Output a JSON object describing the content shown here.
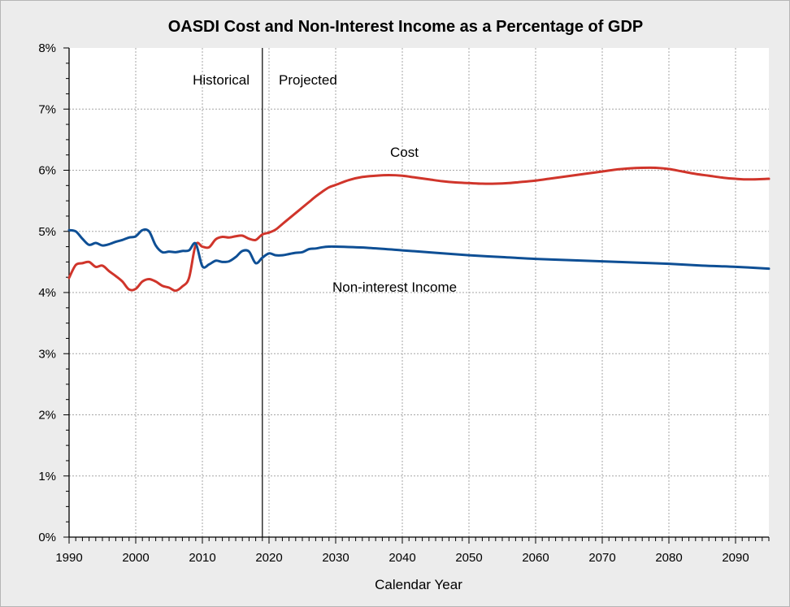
{
  "chart_data": {
    "type": "line",
    "title": "OASDI Cost and Non-Interest Income as a Percentage of GDP",
    "xlabel": "Calendar Year",
    "ylabel": "",
    "xlim": [
      1990,
      2095
    ],
    "ylim": [
      0,
      8
    ],
    "x_ticks": [
      1990,
      2000,
      2010,
      2020,
      2030,
      2040,
      2050,
      2060,
      2070,
      2080,
      2090
    ],
    "y_ticks": [
      "0%",
      "1%",
      "2%",
      "3%",
      "4%",
      "5%",
      "6%",
      "7%",
      "8%"
    ],
    "grid": true,
    "divider_year": 2019,
    "annotations": {
      "historical": "Historical",
      "projected": "Projected",
      "cost": "Cost",
      "income": "Non-interest Income"
    },
    "colors": {
      "cost": "#d0352b",
      "income": "#0e4f95",
      "background": "#ffffff",
      "frame": "#ececec"
    },
    "series": [
      {
        "name": "Cost",
        "x": [
          1990,
          1991,
          1992,
          1993,
          1994,
          1995,
          1996,
          1997,
          1998,
          1999,
          2000,
          2001,
          2002,
          2003,
          2004,
          2005,
          2006,
          2007,
          2008,
          2009,
          2010,
          2011,
          2012,
          2013,
          2014,
          2015,
          2016,
          2017,
          2018,
          2019,
          2020,
          2021,
          2022,
          2023,
          2024,
          2025,
          2026,
          2027,
          2028,
          2029,
          2030,
          2032,
          2034,
          2036,
          2038,
          2040,
          2042,
          2044,
          2046,
          2048,
          2050,
          2052,
          2054,
          2056,
          2058,
          2060,
          2062,
          2064,
          2066,
          2068,
          2070,
          2072,
          2074,
          2076,
          2078,
          2080,
          2082,
          2084,
          2086,
          2088,
          2090,
          2092,
          2095
        ],
        "values": [
          4.24,
          4.45,
          4.48,
          4.5,
          4.42,
          4.44,
          4.35,
          4.27,
          4.18,
          4.05,
          4.06,
          4.18,
          4.22,
          4.18,
          4.11,
          4.08,
          4.03,
          4.1,
          4.24,
          4.78,
          4.75,
          4.74,
          4.87,
          4.91,
          4.9,
          4.92,
          4.93,
          4.88,
          4.86,
          4.95,
          4.98,
          5.03,
          5.12,
          5.21,
          5.3,
          5.39,
          5.48,
          5.57,
          5.65,
          5.72,
          5.76,
          5.84,
          5.89,
          5.91,
          5.92,
          5.91,
          5.88,
          5.85,
          5.82,
          5.8,
          5.79,
          5.78,
          5.78,
          5.79,
          5.81,
          5.83,
          5.86,
          5.89,
          5.92,
          5.95,
          5.98,
          6.01,
          6.03,
          6.04,
          6.04,
          6.02,
          5.98,
          5.94,
          5.91,
          5.88,
          5.86,
          5.85,
          5.86
        ]
      },
      {
        "name": "Non-interest Income",
        "x": [
          1990,
          1991,
          1992,
          1993,
          1994,
          1995,
          1996,
          1997,
          1998,
          1999,
          2000,
          2001,
          2002,
          2003,
          2004,
          2005,
          2006,
          2007,
          2008,
          2009,
          2010,
          2011,
          2012,
          2013,
          2014,
          2015,
          2016,
          2017,
          2018,
          2019,
          2020,
          2021,
          2022,
          2023,
          2024,
          2025,
          2026,
          2027,
          2028,
          2029,
          2030,
          2035,
          2040,
          2045,
          2050,
          2055,
          2060,
          2065,
          2070,
          2075,
          2080,
          2085,
          2090,
          2095
        ],
        "values": [
          5.02,
          5.0,
          4.88,
          4.78,
          4.81,
          4.77,
          4.79,
          4.83,
          4.86,
          4.9,
          4.92,
          5.02,
          5.0,
          4.77,
          4.66,
          4.67,
          4.66,
          4.68,
          4.69,
          4.8,
          4.43,
          4.46,
          4.52,
          4.5,
          4.51,
          4.58,
          4.68,
          4.67,
          4.48,
          4.57,
          4.64,
          4.61,
          4.61,
          4.63,
          4.65,
          4.66,
          4.71,
          4.72,
          4.74,
          4.75,
          4.75,
          4.73,
          4.69,
          4.65,
          4.61,
          4.58,
          4.55,
          4.53,
          4.51,
          4.49,
          4.47,
          4.44,
          4.42,
          4.39
        ]
      }
    ]
  }
}
